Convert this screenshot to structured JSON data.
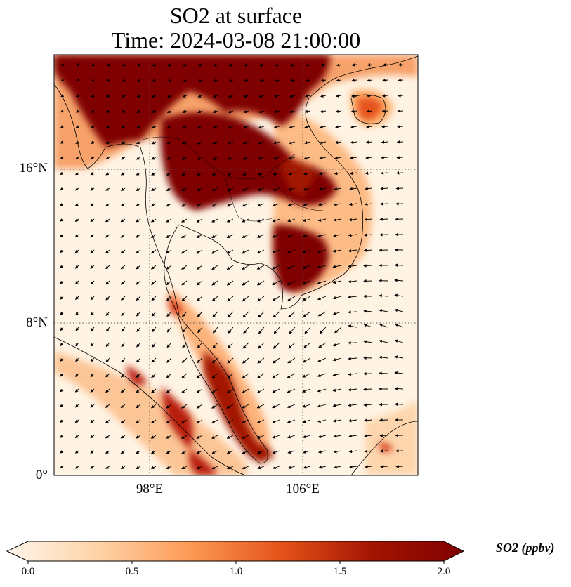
{
  "title": {
    "line1": "SO2 at surface",
    "line2": "Time: 2024-03-08 21:00:00"
  },
  "map": {
    "extent": {
      "lon_min": 93,
      "lon_max": 112,
      "lat_min": 0,
      "lat_max": 22
    },
    "lat_labels": [
      "16°N",
      "8°N",
      "0°"
    ],
    "lat_values": [
      16,
      8,
      0
    ],
    "lon_labels": [
      "98°E",
      "106°E"
    ],
    "lon_values": [
      98,
      106
    ],
    "gridlines": "dotted"
  },
  "field": {
    "variable": "SO2",
    "units": "ppbv",
    "regions_high": [
      {
        "lon": 99.5,
        "lat": 18.5,
        "value": 2.0
      },
      {
        "lon": 103.5,
        "lat": 19.0,
        "value": 2.0
      },
      {
        "lon": 104.5,
        "lat": 15.8,
        "value": 2.0
      },
      {
        "lon": 105.0,
        "lat": 12.0,
        "value": 2.0
      },
      {
        "lon": 95.5,
        "lat": 21.0,
        "value": 2.0
      },
      {
        "lon": 100.5,
        "lat": 4.5,
        "value": 1.6
      },
      {
        "lon": 101.5,
        "lat": 5.0,
        "value": 1.6
      },
      {
        "lon": 99.0,
        "lat": 1.5,
        "value": 1.5
      },
      {
        "lon": 103.5,
        "lat": 1.5,
        "value": 1.6
      },
      {
        "lon": 109.5,
        "lat": 19.0,
        "value": 1.2
      }
    ]
  },
  "colorbar": {
    "ticks": [
      "0.0",
      "0.5",
      "1.0",
      "1.5",
      "2.0"
    ],
    "vmin": 0,
    "vmax": 2,
    "label": "SO2 (ppbv)",
    "colors": [
      "#fff5eb",
      "#fdd3a8",
      "#fd9a55",
      "#e5531a",
      "#a31402",
      "#7f0000"
    ]
  }
}
